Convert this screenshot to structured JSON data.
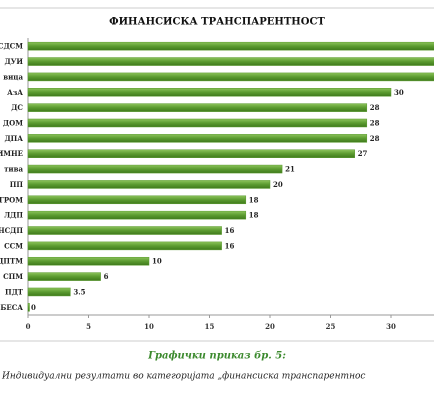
{
  "chart_data": {
    "type": "bar",
    "orientation": "horizontal",
    "title": "ФИНАНСИСКА ТРАНСПАРЕНТНОСТ",
    "categories": [
      "СДСМ",
      "ДУИ",
      "вица",
      "АзА",
      "ДС",
      "ДОМ",
      "ДПА",
      "ИМНЕ",
      "тива",
      "ПП",
      "ГРОМ",
      "ЛДП",
      "НСДП",
      "ССМ",
      "ДПТМ",
      "СПМ",
      "ПДТ",
      "БЕСА"
    ],
    "values": [
      34,
      34,
      34,
      30,
      28,
      28,
      28,
      27,
      21,
      20,
      18,
      18,
      16,
      16,
      10,
      6,
      3.5,
      0
    ],
    "color": "#5b9b30",
    "xlim": [
      0,
      35
    ],
    "xticks": [
      0,
      5,
      10,
      15,
      20,
      25,
      30
    ],
    "grid": false
  },
  "caption": {
    "number": "Графички приказ бр. 5:",
    "text": "Индивидуални резултати во категоријата „финансиска транспарентнос"
  }
}
